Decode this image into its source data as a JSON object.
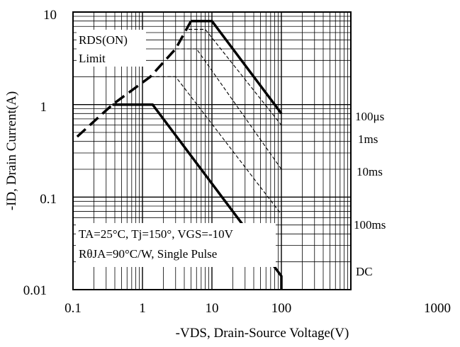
{
  "chart_data": {
    "type": "line",
    "x_scale": "log",
    "y_scale": "log",
    "xlim": [
      0.1,
      1000
    ],
    "ylim": [
      0.01,
      10
    ],
    "grid": true,
    "xlabel": "-VDS, Drain-Source Voltage(V)",
    "ylabel": "-ID, Drain Current(A)",
    "x_ticks": [
      "0.1",
      "1",
      "10",
      "100",
      "1000"
    ],
    "y_ticks": [
      "0.01",
      "0.1",
      "1",
      "10"
    ],
    "series": [
      {
        "name": "RDS(ON) Limit",
        "style": "long-dash",
        "points": [
          [
            0.115,
            0.45
          ],
          [
            0.37,
            1.0
          ],
          [
            1.3,
            2.0
          ],
          [
            3.0,
            4.0
          ],
          [
            5.0,
            8.0
          ]
        ]
      },
      {
        "name": "100μs",
        "style": "thick",
        "points": [
          [
            5.0,
            8.0
          ],
          [
            10.0,
            8.0
          ],
          [
            100,
            0.8
          ]
        ]
      },
      {
        "name": "1ms",
        "style": "dashed",
        "points": [
          [
            4.6,
            6.5
          ],
          [
            8.0,
            6.5
          ],
          [
            100,
            0.6
          ]
        ]
      },
      {
        "name": "10ms",
        "style": "dashed",
        "points": [
          [
            3.0,
            4.0
          ],
          [
            6.0,
            4.0
          ],
          [
            100,
            0.2
          ]
        ]
      },
      {
        "name": "100ms",
        "style": "dashed",
        "points": [
          [
            1.3,
            2.0
          ],
          [
            3.0,
            2.0
          ],
          [
            100,
            0.065
          ]
        ]
      },
      {
        "name": "DC",
        "style": "thick",
        "points": [
          [
            0.37,
            1.0
          ],
          [
            1.4,
            1.0
          ],
          [
            100,
            0.014
          ],
          [
            100,
            0.01
          ]
        ]
      }
    ],
    "annotations": {
      "rds_line1": "RDS(ON)",
      "rds_line2": "Limit",
      "condition_line1": "TA=25°C, Tj=150°, VGS=-10V",
      "condition_line2": "RθJA=90°C/W, Single Pulse"
    }
  }
}
